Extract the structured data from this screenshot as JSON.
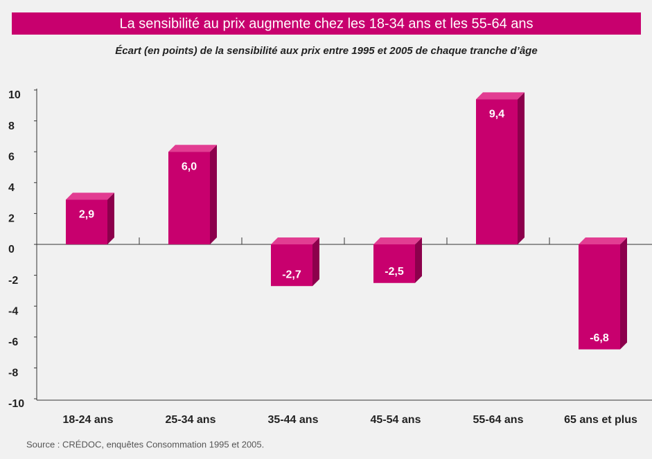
{
  "chart_data": {
    "type": "bar",
    "title": "La sensibilité au prix augmente chez les 18-34 ans et les 55-64 ans",
    "subtitle": "Écart (en points) de la sensibilité aux prix entre 1995 et 2005 de chaque tranche d’âge",
    "source": "Source : CRÉDOC, enquêtes Consommation 1995 et 2005.",
    "categories": [
      "18-24 ans",
      "25-34 ans",
      "35-44 ans",
      "45-54 ans",
      "55-64 ans",
      "65 ans et plus"
    ],
    "values": [
      2.9,
      6.0,
      -2.7,
      -2.5,
      9.4,
      -6.8
    ],
    "value_labels": [
      "2,9",
      "6,0",
      "-2,7",
      "-2,5",
      "9,4",
      "-6,8"
    ],
    "color": "#c8006e",
    "ylim": [
      -10,
      10
    ],
    "yticks": [
      10,
      8,
      6,
      4,
      2,
      0,
      -2,
      -4,
      -6,
      -8,
      -10
    ]
  }
}
